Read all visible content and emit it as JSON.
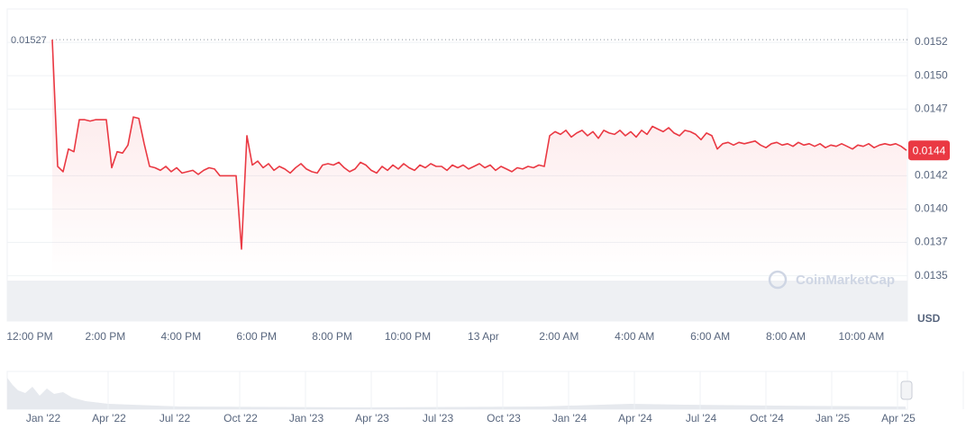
{
  "chart_data": {
    "type": "line",
    "color": "#ea3943",
    "values": [
      0.01527,
      0.01432,
      0.01428,
      0.01445,
      0.01443,
      0.01467,
      0.01467,
      0.01466,
      0.01467,
      0.01467,
      0.01467,
      0.01431,
      0.01443,
      0.01442,
      0.01448,
      0.01469,
      0.01468,
      0.01449,
      0.01432,
      0.01431,
      0.01429,
      0.01432,
      0.01428,
      0.01431,
      0.01427,
      0.01428,
      0.01429,
      0.01426,
      0.01429,
      0.01431,
      0.0143,
      0.01425,
      0.01425,
      0.01425,
      0.01425,
      0.0137,
      0.01455,
      0.01433,
      0.01436,
      0.01431,
      0.01434,
      0.01429,
      0.01432,
      0.0143,
      0.01427,
      0.01431,
      0.01434,
      0.0143,
      0.01428,
      0.01427,
      0.01433,
      0.01434,
      0.01433,
      0.01435,
      0.01431,
      0.01428,
      0.0143,
      0.01435,
      0.01433,
      0.01429,
      0.01427,
      0.01432,
      0.01429,
      0.01433,
      0.0143,
      0.01434,
      0.01431,
      0.01429,
      0.01433,
      0.01431,
      0.01434,
      0.01432,
      0.01432,
      0.01429,
      0.01433,
      0.01431,
      0.01433,
      0.0143,
      0.01432,
      0.01434,
      0.01431,
      0.01433,
      0.01429,
      0.01432,
      0.0143,
      0.01428,
      0.01431,
      0.0143,
      0.01432,
      0.01431,
      0.01433,
      0.01432,
      0.01455,
      0.01458,
      0.01456,
      0.01459,
      0.01454,
      0.01457,
      0.01459,
      0.01455,
      0.01458,
      0.01453,
      0.01459,
      0.01457,
      0.01456,
      0.01459,
      0.01455,
      0.01458,
      0.01454,
      0.01459,
      0.01456,
      0.01462,
      0.0146,
      0.01458,
      0.01461,
      0.01457,
      0.01455,
      0.01459,
      0.01458,
      0.01456,
      0.01452,
      0.01457,
      0.01455,
      0.01445,
      0.01449,
      0.0145,
      0.01448,
      0.0145,
      0.01449,
      0.0145,
      0.01451,
      0.01448,
      0.01446,
      0.01449,
      0.0145,
      0.01448,
      0.01449,
      0.01447,
      0.0145,
      0.01448,
      0.01449,
      0.01447,
      0.01449,
      0.01446,
      0.01448,
      0.01447,
      0.01449,
      0.01447,
      0.01445,
      0.01448,
      0.01447,
      0.01449,
      0.01446,
      0.01448,
      0.01449,
      0.01448,
      0.01449,
      0.01447,
      0.01444
    ],
    "last_price_label": "0.0144",
    "ylim": [
      0.01316,
      0.0155
    ],
    "yticks": [
      0.0135,
      {
        "value": 0.01375,
        "label": "0.0137"
      },
      {
        "value": 0.014,
        "label": "0.0140"
      },
      {
        "value": 0.01425,
        "label": "0.0142"
      },
      {
        "value": 0.01475,
        "label": "0.0147"
      },
      {
        "value": 0.015,
        "label": "0.0150"
      },
      {
        "value": 0.01525,
        "label": "0.0152"
      }
    ],
    "x_labels": [
      "12:00 PM",
      "2:00 PM",
      "4:00 PM",
      "6:00 PM",
      "8:00 PM",
      "10:00 PM",
      "13 Apr",
      "2:00 AM",
      "4:00 AM",
      "6:00 AM",
      "8:00 AM",
      "10:00 AM"
    ],
    "currency": "USD",
    "watermark": "CoinMarketCap",
    "navigator_labels": [
      "Jan '22",
      "Apr '22",
      "Jul '22",
      "Oct '22",
      "Jan '23",
      "Apr '23",
      "Jul '23",
      "Oct '23",
      "Jan '24",
      "Apr '24",
      "Jul '24",
      "Oct '24",
      "Jan '25",
      "Apr '25"
    ],
    "grid": true
  }
}
